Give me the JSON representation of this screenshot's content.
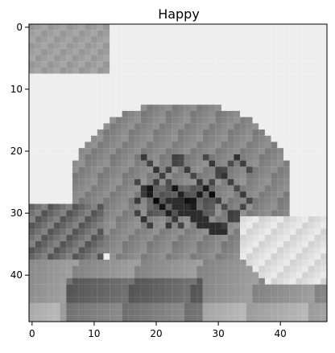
{
  "chart_data": {
    "type": "heatmap",
    "title": "Happy",
    "colormap": "gray",
    "xlim": [
      -0.5,
      47.5
    ],
    "ylim": [
      47.5,
      -0.5
    ],
    "xticks": [
      0,
      10,
      20,
      30,
      40
    ],
    "yticks": [
      0,
      10,
      20,
      30,
      40
    ],
    "xtick_labels": [
      "0",
      "10",
      "20",
      "30",
      "40"
    ],
    "ytick_labels": [
      "0",
      "10",
      "20",
      "30",
      "40"
    ],
    "grid": false,
    "image_shape": [
      48,
      48
    ],
    "description_regions": [
      {
        "name": "background",
        "value": 235
      },
      {
        "name": "top-left-dark-patch",
        "value": 150
      },
      {
        "name": "face",
        "value": 125
      },
      {
        "name": "eyes",
        "value": 55
      },
      {
        "name": "lower-dark",
        "value": 40
      }
    ]
  }
}
